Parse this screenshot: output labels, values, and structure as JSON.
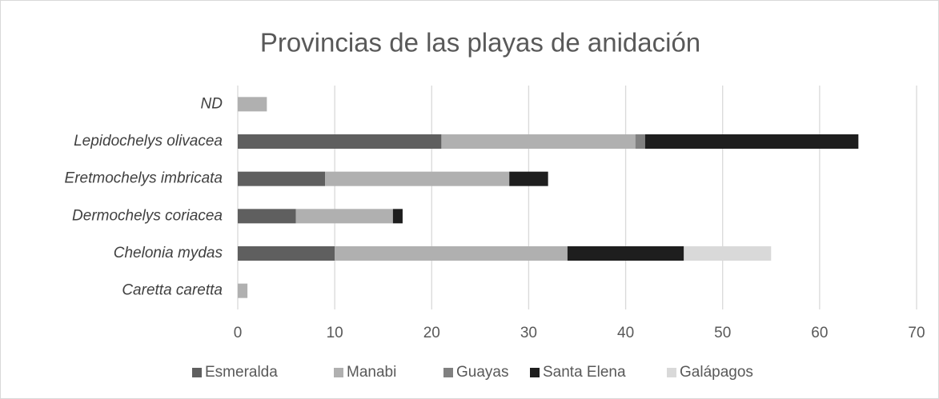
{
  "chart_data": {
    "type": "stacked_barh",
    "title": "Provincias de las playas de anidación",
    "categories": [
      "ND",
      "Lepidochelys olivacea",
      "Eretmochelys imbricata",
      "Dermochelys coriacea",
      "Chelonia mydas",
      "Caretta caretta"
    ],
    "series": [
      {
        "name": "Esmeralda",
        "color": "#5f5f5f",
        "values": [
          0,
          21,
          9,
          6,
          10,
          0
        ]
      },
      {
        "name": "Manabi",
        "color": "#b0b0b0",
        "values": [
          3,
          20,
          19,
          10,
          24,
          1
        ]
      },
      {
        "name": "Guayas",
        "color": "#808080",
        "values": [
          0,
          1,
          0,
          0,
          0,
          0
        ]
      },
      {
        "name": "Santa Elena",
        "color": "#1e1e1e",
        "values": [
          0,
          22,
          4,
          1,
          12,
          0
        ]
      },
      {
        "name": "Galápagos",
        "color": "#d9d9d9",
        "values": [
          0,
          0,
          0,
          0,
          9,
          0
        ]
      }
    ],
    "xlim": [
      0,
      70
    ],
    "xticks": [
      0,
      10,
      20,
      30,
      40,
      50,
      60,
      70
    ],
    "grid": true,
    "legend": "bottom"
  }
}
